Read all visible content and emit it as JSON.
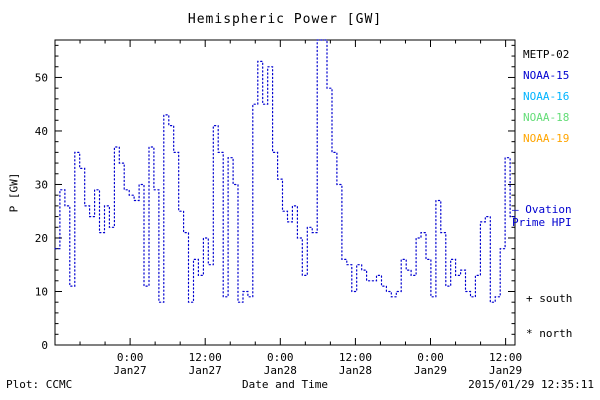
{
  "title": "Hemispheric Power [GW]",
  "ylabel": "P [GW]",
  "xlabel": "Date and Time",
  "footer": {
    "left": "Plot: CCMC",
    "right": "2015/01/29 12:35:11"
  },
  "legend": [
    {
      "label": "METP-02",
      "color": "#000000"
    },
    {
      "label": "NOAA-15",
      "color": "#0000d0"
    },
    {
      "label": "NOAA-16",
      "color": "#00b4ff"
    },
    {
      "label": "NOAA-18",
      "color": "#63dd77"
    },
    {
      "label": "NOAA-19",
      "color": "#ffa500"
    }
  ],
  "annotations": {
    "ovation_line1": "— Ovation",
    "ovation_line2": "Prime HPI",
    "ovation_color": "#0000d0",
    "south_marker": "+ south",
    "north_marker": "* north"
  },
  "chart_data": {
    "type": "line",
    "subtype": "step",
    "line_style": "dotted",
    "title": "Hemispheric Power [GW]",
    "xlabel": "Date and Time",
    "ylabel": "P [GW]",
    "x_start_hours": 0,
    "x_end_hours": 73.5,
    "x_ticks": [
      {
        "hours": 12,
        "time": "0:00",
        "date": "Jan27"
      },
      {
        "hours": 24,
        "time": "12:00",
        "date": "Jan27"
      },
      {
        "hours": 36,
        "time": "0:00",
        "date": "Jan28"
      },
      {
        "hours": 48,
        "time": "12:00",
        "date": "Jan28"
      },
      {
        "hours": 60,
        "time": "0:00",
        "date": "Jan29"
      },
      {
        "hours": 72,
        "time": "12:00",
        "date": "Jan29"
      }
    ],
    "x_minor_step_hours": 4,
    "y_min": 0,
    "y_max": 57,
    "y_ticks": [
      0,
      10,
      20,
      30,
      40,
      50
    ],
    "y_minor_step": 2,
    "series": [
      {
        "name": "Ovation Prime HPI",
        "color": "#0000d0",
        "values": [
          18,
          29,
          26,
          11,
          36,
          33,
          26,
          24,
          29,
          21,
          26,
          22,
          37,
          34,
          29,
          28,
          27,
          30,
          11,
          37,
          29,
          8,
          43,
          41,
          36,
          25,
          21,
          8,
          16,
          13,
          20,
          15,
          41,
          36,
          9,
          35,
          30,
          8,
          10,
          9,
          45,
          53,
          45,
          52,
          36,
          31,
          25,
          23,
          26,
          20,
          13,
          22,
          21,
          57,
          57,
          48,
          36,
          30,
          16,
          15,
          10,
          15,
          14,
          12,
          12,
          13,
          11,
          10,
          9,
          10,
          16,
          14,
          13,
          20,
          21,
          16,
          9,
          27,
          21,
          11,
          16,
          13,
          14,
          10,
          9,
          13,
          23,
          24,
          8,
          9,
          18,
          35,
          24
        ]
      }
    ]
  }
}
